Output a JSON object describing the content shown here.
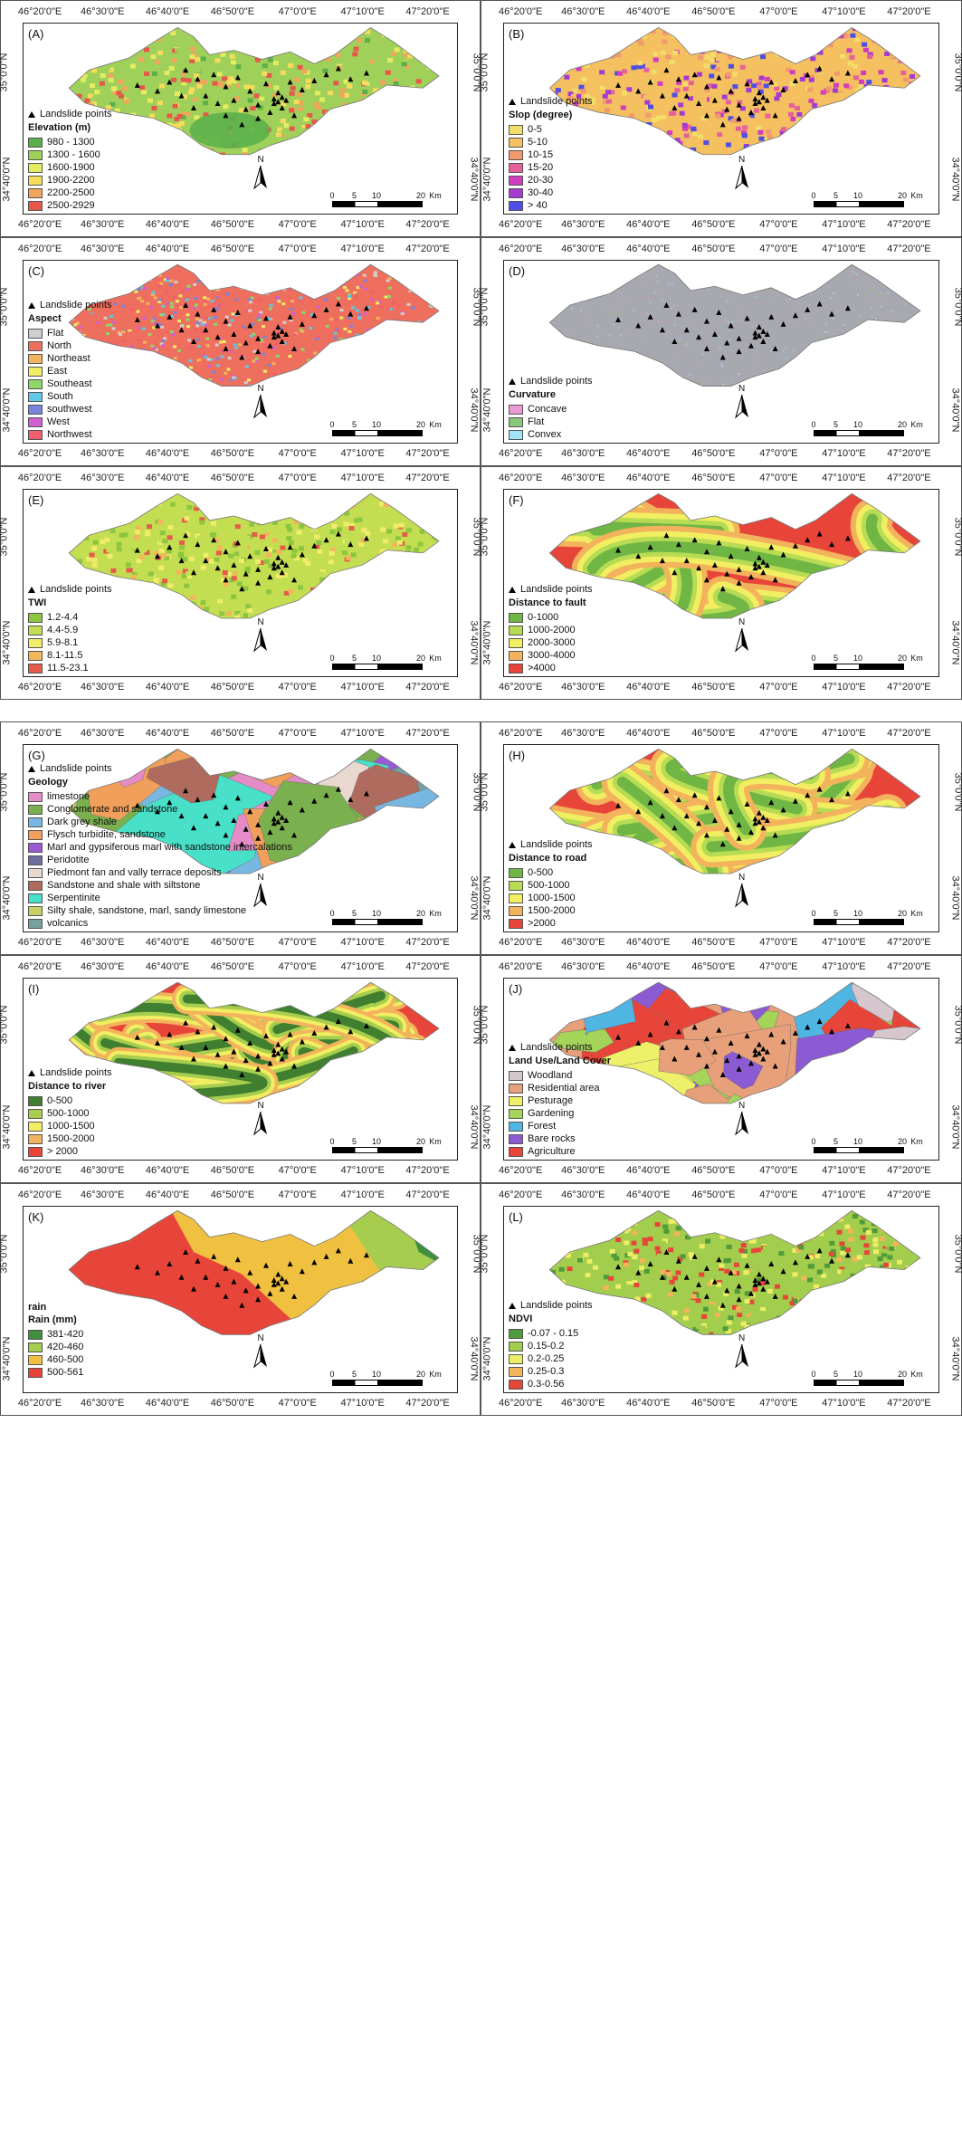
{
  "common": {
    "lon_labels": [
      "46°20'0\"E",
      "46°30'0\"E",
      "46°40'0\"E",
      "46°50'0\"E",
      "47°0'0\"E",
      "47°10'0\"E",
      "47°20'0\"E"
    ],
    "lat_upper": "35°0'0\"N",
    "lat_lower": "34°40'0\"N",
    "landslide_label": "Landslide points",
    "north_label": "N",
    "scale_labels": [
      "0",
      "5",
      "10",
      "20"
    ],
    "scale_unit": "Km"
  },
  "panels": [
    {
      "id": "A",
      "letter": "(A)",
      "legend_title": "Elevation (m)",
      "style": "elev",
      "classes": [
        {
          "label": "980 - 1300",
          "color": "#5bb04a"
        },
        {
          "label": "1300 - 1600",
          "color": "#9fd05a"
        },
        {
          "label": "1600-1900",
          "color": "#e4ec62"
        },
        {
          "label": "1900-2200",
          "color": "#f7dc5c"
        },
        {
          "label": "2200-2500",
          "color": "#f2a45a"
        },
        {
          "label": "2500-2929",
          "color": "#e8574b"
        }
      ]
    },
    {
      "id": "B",
      "letter": "(B)",
      "legend_title": "Slop (degree)",
      "style": "slope",
      "classes": [
        {
          "label": "0-5",
          "color": "#f3de6a"
        },
        {
          "label": "5-10",
          "color": "#f4c060"
        },
        {
          "label": "10-15",
          "color": "#f09a6e"
        },
        {
          "label": "15-20",
          "color": "#e6619a"
        },
        {
          "label": "20-30",
          "color": "#d23cbf"
        },
        {
          "label": "30-40",
          "color": "#a43ad2"
        },
        {
          "label": "> 40",
          "color": "#4f4ee6"
        }
      ]
    },
    {
      "id": "C",
      "letter": "(C)",
      "legend_title": "Aspect",
      "style": "aspect",
      "classes": [
        {
          "label": "Flat",
          "color": "#cfcfcf"
        },
        {
          "label": "North",
          "color": "#ef6f5f"
        },
        {
          "label": "Northeast",
          "color": "#f3b35a"
        },
        {
          "label": "East",
          "color": "#f1ed66"
        },
        {
          "label": "Southeast",
          "color": "#8ed867"
        },
        {
          "label": "South",
          "color": "#5ec8e6"
        },
        {
          "label": "southwest",
          "color": "#7a83df"
        },
        {
          "label": "West",
          "color": "#d35ed0"
        },
        {
          "label": "Northwest",
          "color": "#ef5f6f"
        }
      ]
    },
    {
      "id": "D",
      "letter": "(D)",
      "legend_title": "Curvature",
      "style": "curv",
      "classes": [
        {
          "label": "Concave",
          "color": "#e99ad4"
        },
        {
          "label": "Flat",
          "color": "#88c878"
        },
        {
          "label": "Convex",
          "color": "#9ee4f4"
        }
      ]
    },
    {
      "id": "E",
      "letter": "(E)",
      "legend_title": "TWI",
      "style": "twi",
      "classes": [
        {
          "label": "1.2-4.4",
          "color": "#8cc63f"
        },
        {
          "label": "4.4-5.9",
          "color": "#c4de52"
        },
        {
          "label": "5.9-8.1",
          "color": "#f1ec6a"
        },
        {
          "label": "8.1-11.5",
          "color": "#f3b55c"
        },
        {
          "label": "11.5-23.1",
          "color": "#e65b4b"
        }
      ]
    },
    {
      "id": "F",
      "letter": "(F)",
      "legend_title": "Distance to fault",
      "style": "fault",
      "classes": [
        {
          "label": "0-1000",
          "color": "#6fb644"
        },
        {
          "label": "1000-2000",
          "color": "#b7dc54"
        },
        {
          "label": "2000-3000",
          "color": "#f2ee62"
        },
        {
          "label": "3000-4000",
          "color": "#f3b35c"
        },
        {
          "label": ">4000",
          "color": "#e8453a"
        }
      ]
    },
    {
      "id": "G",
      "letter": "(G)",
      "legend_title": "Geology",
      "style": "geo",
      "classes": [
        {
          "label": "limestone",
          "color": "#e58cc8"
        },
        {
          "label": "Conglomerate and sandstone",
          "color": "#7ab04e"
        },
        {
          "label": "Dark grey shale",
          "color": "#79b7e3"
        },
        {
          "label": "Flysch turbidite, sandstone",
          "color": "#f0a05a"
        },
        {
          "label": "Marl and gypsiferous marl with sandstone intercalations",
          "color": "#9a5ad6"
        },
        {
          "label": "Peridotite",
          "color": "#6e6e9e"
        },
        {
          "label": "Piedmont fan and vally terrace deposits",
          "color": "#e8d8d0"
        },
        {
          "label": "Sandstone and shale with siltstone",
          "color": "#b06b5f"
        },
        {
          "label": "Serpentinite",
          "color": "#48e0c8"
        },
        {
          "label": "Silty shale, sandstone, marl, sandy limestone",
          "color": "#c8d264"
        },
        {
          "label": "volcanics",
          "color": "#76a0a0"
        }
      ]
    },
    {
      "id": "H",
      "letter": "(H)",
      "legend_title": "Distance to road",
      "style": "road",
      "classes": [
        {
          "label": "0-500",
          "color": "#6fb644"
        },
        {
          "label": "500-1000",
          "color": "#b7dc54"
        },
        {
          "label": "1000-1500",
          "color": "#f2ee62"
        },
        {
          "label": "1500-2000",
          "color": "#f3b35c"
        },
        {
          "label": ">2000",
          "color": "#e8453a"
        }
      ]
    },
    {
      "id": "I",
      "letter": "(I)",
      "legend_title": "Distance to river",
      "style": "river",
      "classes": [
        {
          "label": "0-500",
          "color": "#3f7f2f"
        },
        {
          "label": "500-1000",
          "color": "#a7cd4f"
        },
        {
          "label": "1000-1500",
          "color": "#f2ee62"
        },
        {
          "label": "1500-2000",
          "color": "#f3b35c"
        },
        {
          "label": "> 2000",
          "color": "#e8453a"
        }
      ]
    },
    {
      "id": "J",
      "letter": "(J)",
      "legend_title": "Land Use/Land Cover",
      "style": "lulc",
      "classes": [
        {
          "label": "Woodland",
          "color": "#d6c7cf"
        },
        {
          "label": "Residential area",
          "color": "#e7a07a"
        },
        {
          "label": "Pesturage",
          "color": "#eef06a"
        },
        {
          "label": "Gardening",
          "color": "#a5d45a"
        },
        {
          "label": "Forest",
          "color": "#4fb6e4"
        },
        {
          "label": "Bare rocks",
          "color": "#8c5ad2"
        },
        {
          "label": "Agriculture",
          "color": "#e8453a"
        }
      ]
    },
    {
      "id": "K",
      "letter": "(K)",
      "legend_title": "Rain (mm)",
      "legend_pre": "rain",
      "style": "rain",
      "classes": [
        {
          "label": "381-420",
          "color": "#3f8f3f"
        },
        {
          "label": "420-460",
          "color": "#a7cd4f"
        },
        {
          "label": "460-500",
          "color": "#f0c040"
        },
        {
          "label": "500-561",
          "color": "#e8453a"
        }
      ]
    },
    {
      "id": "L",
      "letter": "(L)",
      "legend_title": "NDVI",
      "style": "ndvi",
      "classes": [
        {
          "label": "-0.07 - 0.15",
          "color": "#4f9a3a"
        },
        {
          "label": "0.15-0.2",
          "color": "#a3cd4c"
        },
        {
          "label": "0.2-0.25",
          "color": "#eeee66"
        },
        {
          "label": "0.25-0.3",
          "color": "#f4b45a"
        },
        {
          "label": "0.3-0.56",
          "color": "#e8453a"
        }
      ]
    }
  ]
}
